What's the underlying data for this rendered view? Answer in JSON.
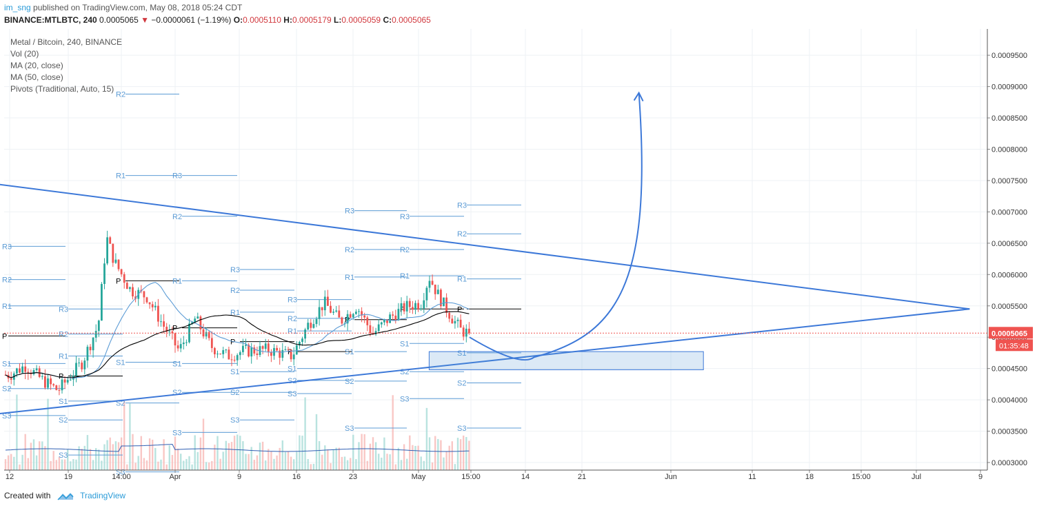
{
  "header": {
    "user": "im_sng",
    "published": "published on TradingView.com, May 08, 2018 05:24 CDT"
  },
  "symbol_line": {
    "symbol": "BINANCE:MTLBTC, 240",
    "last": "0.0005065",
    "change": "−0.0000061 (−1.19%)",
    "o_label": "O:",
    "o": "0.0005110",
    "h_label": "H:",
    "h": "0.0005179",
    "l_label": "L:",
    "l": "0.0005059",
    "c_label": "C:",
    "c": "0.0005065"
  },
  "legend": {
    "title": "Metal / Bitcoin, 240, BINANCE",
    "items": [
      "Vol (20)",
      "MA (20, close)",
      "MA (50, close)",
      "Pivots (Traditional, Auto, 15)"
    ]
  },
  "price_tag": {
    "value": "0.0005065",
    "countdown": "01:35:48",
    "color": "#ef5350"
  },
  "footer": {
    "created": "Created with",
    "brand": "TradingView"
  },
  "colors": {
    "drawing": "#3c78d8",
    "pivot": "#5b9bd5",
    "up": "#26a69a",
    "down": "#ef5350",
    "ma20": "#5b9bd5",
    "ma50": "#000000"
  },
  "chart_data": {
    "type": "candlestick",
    "title": "Metal / Bitcoin, 240, BINANCE",
    "y_axis": {
      "ticks": [
        0.0003,
        0.00035,
        0.0004,
        0.00045,
        0.0005,
        0.00055,
        0.0006,
        0.00065,
        0.0007,
        0.00075,
        0.0008,
        0.00085,
        0.0009,
        0.00095
      ],
      "tick_labels": [
        "0.0003000",
        "0.0003500",
        "0.0004000",
        "0.0004500",
        "0.0005000",
        "0.0005500",
        "0.0006000",
        "0.0006500",
        "0.0007000",
        "0.0007500",
        "0.0008000",
        "0.0008500",
        "0.0009000",
        "0.0009500"
      ],
      "ylim": [
        0.000288,
        0.000998
      ]
    },
    "x_axis": {
      "tick_labels": [
        "12",
        "19",
        "14:00",
        "Apr",
        "9",
        "16",
        "23",
        "May",
        "15:00",
        "14",
        "21",
        "Jun",
        "11",
        "18",
        "15:00",
        "Jul",
        "9"
      ]
    },
    "close_path": [
      [
        "2018-03-12",
        0.00044
      ],
      [
        "2018-03-14",
        0.000455
      ],
      [
        "2018-03-16",
        0.000432
      ],
      [
        "2018-03-18",
        0.000415
      ],
      [
        "2018-03-19",
        0.00043
      ],
      [
        "2018-03-21",
        0.00046
      ],
      [
        "2018-03-23",
        0.00052
      ],
      [
        "2018-03-24",
        0.00066
      ],
      [
        "2018-03-25",
        0.00062
      ],
      [
        "2018-03-27",
        0.000575
      ],
      [
        "2018-03-29",
        0.000565
      ],
      [
        "2018-03-31",
        0.00052
      ],
      [
        "2018-04-02",
        0.000478
      ],
      [
        "2018-04-04",
        0.00053
      ],
      [
        "2018-04-06",
        0.000485
      ],
      [
        "2018-04-08",
        0.00047
      ],
      [
        "2018-04-10",
        0.000478
      ],
      [
        "2018-04-13",
        0.00048
      ],
      [
        "2018-04-16",
        0.00047
      ],
      [
        "2018-04-18",
        0.00052
      ],
      [
        "2018-04-20",
        0.000555
      ],
      [
        "2018-04-22",
        0.000525
      ],
      [
        "2018-04-24",
        0.00055
      ],
      [
        "2018-04-26",
        0.000505
      ],
      [
        "2018-04-28",
        0.00053
      ],
      [
        "2018-04-30",
        0.000548
      ],
      [
        "2018-05-02",
        0.000555
      ],
      [
        "2018-05-03",
        0.000597
      ],
      [
        "2018-05-04",
        0.00057
      ],
      [
        "2018-05-05",
        0.000548
      ],
      [
        "2018-05-06",
        0.000528
      ],
      [
        "2018-05-07",
        0.00051
      ],
      [
        "2018-05-08",
        0.0005065
      ]
    ],
    "last_close": 0.0005065,
    "annotations": {
      "resistance_line": [
        [
          "2018-03-10",
          0.000745
        ],
        [
          "2018-07-09",
          0.000545
        ]
      ],
      "support_line": [
        [
          "2018-03-10",
          0.000377
        ],
        [
          "2018-07-09",
          0.000545
        ]
      ],
      "box": {
        "from": "2018-05-03",
        "to": "2018-06-06",
        "low": 0.000448,
        "high": 0.000477
      },
      "projection": [
        [
          "2018-05-08",
          0.0005
        ],
        [
          "2018-05-16",
          0.000468
        ],
        [
          "2018-05-23",
          0.00052
        ],
        [
          "2018-05-29",
          0.00089
        ]
      ]
    },
    "pivot_labels": [
      "R3",
      "R2",
      "R1",
      "P",
      "S1",
      "S2",
      "S3"
    ]
  }
}
